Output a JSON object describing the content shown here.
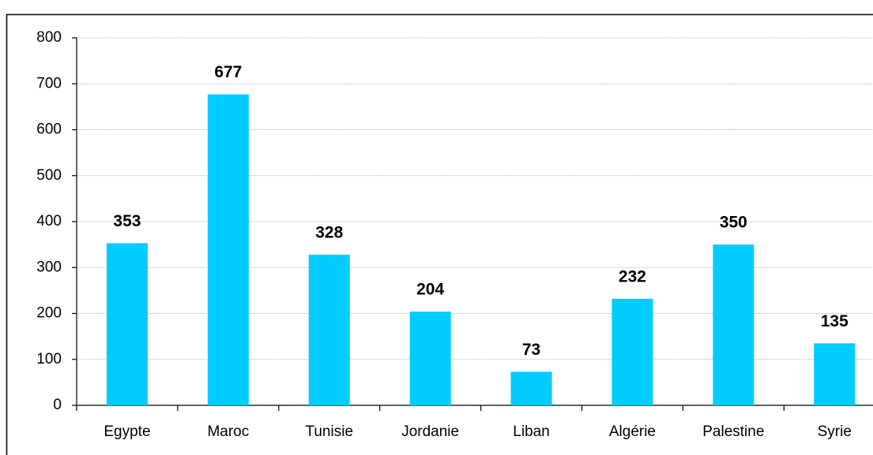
{
  "chart_data": {
    "type": "bar",
    "categories": [
      "Egypte",
      "Maroc",
      "Tunisie",
      "Jordanie",
      "Liban",
      "Algérie",
      "Palestine",
      "Syrie"
    ],
    "values": [
      353,
      677,
      328,
      204,
      73,
      232,
      350,
      135
    ],
    "color": "#00ccff",
    "ylim": [
      0,
      800
    ],
    "yticks": [
      0,
      100,
      200,
      300,
      400,
      500,
      600,
      700,
      800
    ],
    "grid": true
  }
}
